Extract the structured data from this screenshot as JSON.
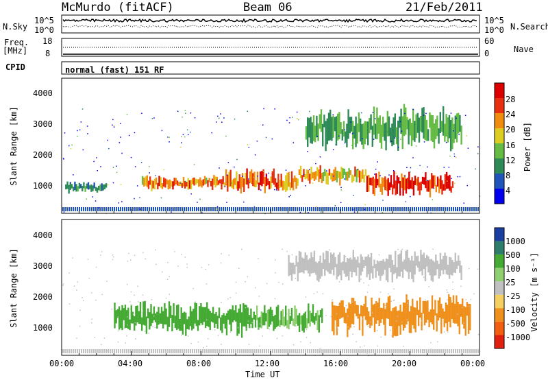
{
  "header": {
    "station": "McMurdo (fitACF)",
    "beam": "Beam 06",
    "date": "21/Feb/2011"
  },
  "noise_panel": {
    "left_label": "N.Sky",
    "right_label": "N.Search",
    "ticks_left": [
      "10^5",
      "10^0"
    ],
    "ticks_right": [
      "10^5",
      "10^0"
    ]
  },
  "freq_panel": {
    "left_label_1": "Freq.",
    "left_label_2": "[MHz]",
    "right_label": "Nave",
    "ticks_left": [
      "18",
      "8"
    ],
    "ticks_right": [
      "60",
      "0"
    ]
  },
  "cpid": {
    "label": "CPID",
    "value": "normal (fast) 151 RF"
  },
  "chart_data": [
    {
      "type": "heatmap",
      "title": "",
      "xlabel": "Time UT",
      "ylabel": "Slant Range [km]",
      "xlim": [
        0,
        24
      ],
      "ylim": [
        180,
        4500
      ],
      "yticks": [
        "1000",
        "2000",
        "3000",
        "4000"
      ],
      "colorbar": {
        "label": "Power [dB]",
        "ticks": [
          "4",
          "8",
          "12",
          "16",
          "20",
          "24",
          "28"
        ],
        "colors": [
          "#0000ee",
          "#2255bb",
          "#2e8b57",
          "#66bb44",
          "#ddcc22",
          "#f08c10",
          "#e83010",
          "#dd0000"
        ]
      },
      "regions": [
        {
          "t0": 0.2,
          "t1": 2.6,
          "r0": 800,
          "r1": 1200,
          "value": 10
        },
        {
          "t0": 4.6,
          "t1": 9.4,
          "r0": 900,
          "r1": 1400,
          "value": 22
        },
        {
          "t0": 9.4,
          "t1": 13.6,
          "r0": 800,
          "r1": 1600,
          "value": 24
        },
        {
          "t0": 13.6,
          "t1": 17.5,
          "r0": 1100,
          "r1": 1700,
          "value": 20
        },
        {
          "t0": 17.5,
          "t1": 22.5,
          "r0": 700,
          "r1": 1500,
          "value": 26
        },
        {
          "t0": 14.0,
          "t1": 23.0,
          "r0": 2200,
          "r1": 3600,
          "value": 12
        }
      ]
    },
    {
      "type": "heatmap",
      "title": "",
      "xlabel": "Time UT",
      "ylabel": "Slant Range [km]",
      "xlim": [
        0,
        24
      ],
      "ylim": [
        180,
        4500
      ],
      "yticks": [
        "1000",
        "2000",
        "3000",
        "4000"
      ],
      "colorbar": {
        "label": "Velocity [m s⁻¹]",
        "ticks": [
          "1000",
          "500",
          "100",
          "25",
          "-25",
          "-100",
          "-500",
          "-1000"
        ],
        "colors": [
          "#1a3fa0",
          "#2e7c6a",
          "#44aa33",
          "#8fcf70",
          "#c0c0c0",
          "#f4d060",
          "#f0901c",
          "#f06010",
          "#e02010"
        ]
      },
      "regions": [
        {
          "t0": 3.0,
          "t1": 11.0,
          "r0": 800,
          "r1": 1900,
          "value": 300
        },
        {
          "t0": 11.0,
          "t1": 15.0,
          "r0": 900,
          "r1": 1800,
          "value": 100
        },
        {
          "t0": 15.5,
          "t1": 23.5,
          "r0": 800,
          "r1": 2100,
          "value": -300
        },
        {
          "t0": 13.0,
          "t1": 23.0,
          "r0": 2500,
          "r1": 3500,
          "value": 0
        }
      ]
    }
  ],
  "x_axis": {
    "label": "Time UT",
    "ticks": [
      "00:00",
      "04:00",
      "08:00",
      "12:00",
      "16:00",
      "20:00",
      "00:00"
    ]
  }
}
